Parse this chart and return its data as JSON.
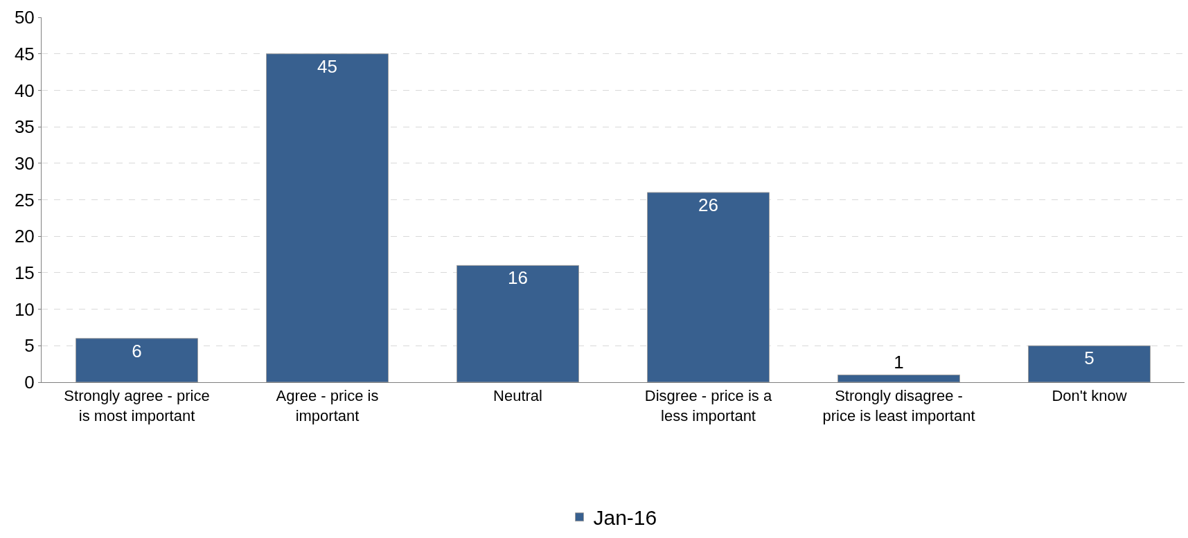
{
  "chart_data": {
    "type": "bar",
    "categories": [
      "Strongly agree - price is most important",
      "Agree - price is important",
      "Neutral",
      "Disgree - price is a less important",
      "Strongly disagree - price is least important",
      "Don't know"
    ],
    "series": [
      {
        "name": "Jan-16",
        "color": "#38608f",
        "values": [
          6,
          45,
          16,
          26,
          1,
          5
        ]
      }
    ],
    "ylim": [
      0,
      50
    ],
    "yticks": [
      0,
      5,
      10,
      15,
      20,
      25,
      30,
      35,
      40,
      45,
      50
    ],
    "grid": "y",
    "legend": "bottom",
    "data_labels": true
  }
}
